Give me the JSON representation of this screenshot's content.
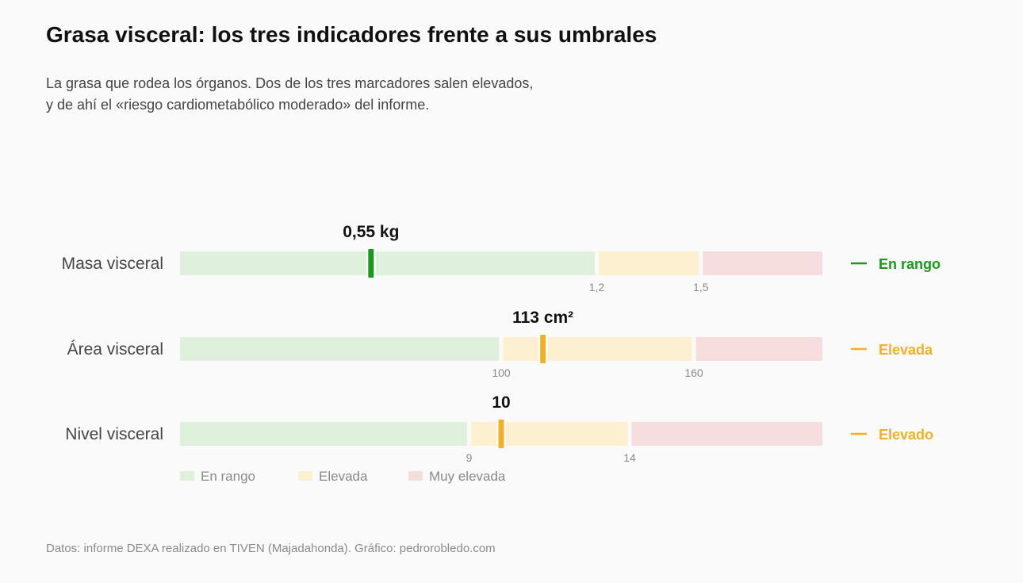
{
  "header": {
    "title": "Grasa visceral: los tres indicadores frente a sus umbrales",
    "subtitle_line1": "La grasa que rodea los órganos. Dos de los tres marcadores salen elevados,",
    "subtitle_line2": "y de ahí el «riesgo cardiometabólico moderado» del informe."
  },
  "footer": {
    "source": "Datos: informe DEXA realizado en TIVEN (Majadahonda). Gráfico: pedrorobledo.com"
  },
  "colors": {
    "in_range_band": "#dff1dc",
    "elevated_band": "#fdf0d0",
    "very_elevated_band": "#f7dede",
    "in_range_marker": "#1a9a1a",
    "elevated_marker": "#f2b124"
  },
  "chart_data": {
    "type": "bullet",
    "legend_position": "bottom-left",
    "legend": [
      {
        "key": "in_range",
        "label": "En rango",
        "color": "#dff1dc"
      },
      {
        "key": "elevated",
        "label": "Elevada",
        "color": "#fdf0d0"
      },
      {
        "key": "very_elevated",
        "label": "Muy elevada",
        "color": "#f7dede"
      }
    ],
    "rows": [
      {
        "label": "Masa visceral",
        "value": 0.55,
        "value_label": "0,55 kg",
        "range": [
          0,
          1.85
        ],
        "thresholds": [
          1.2,
          1.5
        ],
        "threshold_labels": [
          "1,2",
          "1,5"
        ],
        "status": "En rango",
        "status_color": "#1a9a1a"
      },
      {
        "label": "Área visceral",
        "value": 113,
        "value_label": "113 cm²",
        "range": [
          0,
          200
        ],
        "thresholds": [
          100,
          160
        ],
        "threshold_labels": [
          "100",
          "160"
        ],
        "status": "Elevada",
        "status_color": "#f2b124"
      },
      {
        "label": "Nivel visceral",
        "value": 10,
        "value_label": "10",
        "range": [
          0,
          20
        ],
        "thresholds": [
          9,
          14
        ],
        "threshold_labels": [
          "9",
          "14"
        ],
        "status": "Elevado",
        "status_color": "#f2b124"
      }
    ]
  }
}
